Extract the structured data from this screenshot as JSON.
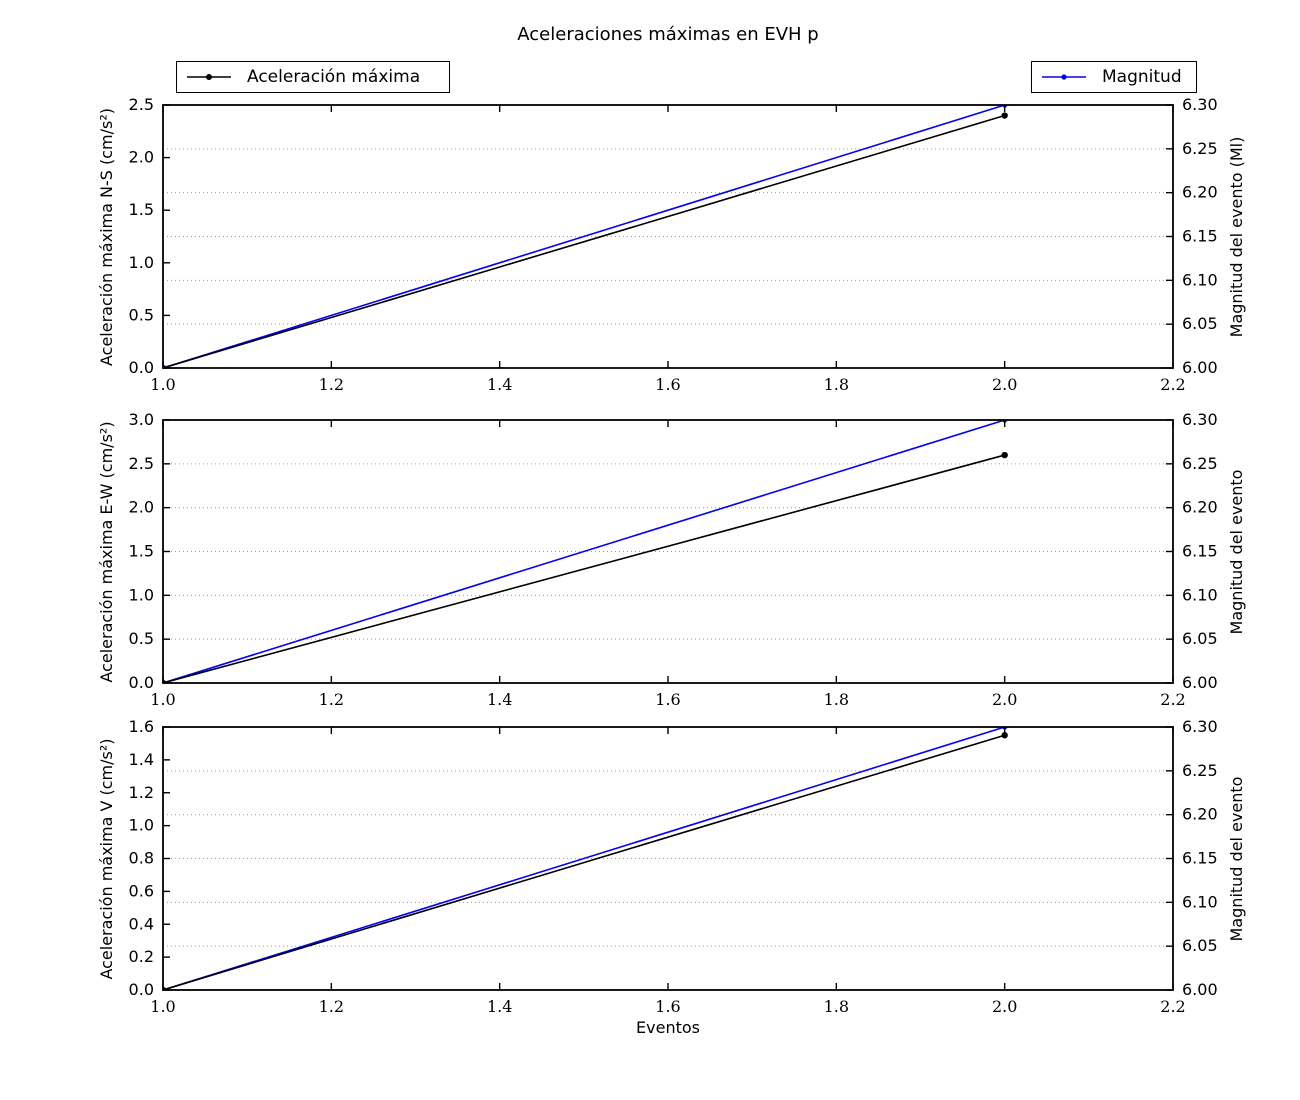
{
  "title": "Aceleraciones máximas en EVH p",
  "xlabel": "Eventos",
  "legends": {
    "accel": {
      "label": "Aceleración máxima",
      "color": "#000000"
    },
    "magnitud": {
      "label": "Magnitud",
      "color": "#0000ff"
    }
  },
  "colors": {
    "acceleration_line": "#000000",
    "magnitude_line": "#0000ff",
    "grid_line": "#9a9a9a",
    "spine": "#000000",
    "background": "#ffffff"
  },
  "chart_data": [
    {
      "type": "line",
      "x": [
        1.0,
        2.0
      ],
      "xlim": [
        1.0,
        2.2
      ],
      "xtick_values": [
        1.0,
        1.2,
        1.4,
        1.6,
        1.8,
        2.0,
        2.2
      ],
      "xtick_labels": [
        "1.0",
        "1.2",
        "1.4",
        "1.6",
        "1.8",
        "2.0",
        "2.2"
      ],
      "grid": {
        "on": true,
        "style": "dotted",
        "follows": "right-axis-ticks"
      },
      "left": {
        "label": "Aceleración máxima N-S (cm/s²)",
        "series_name": "Aceleración máxima",
        "ylim": [
          0.0,
          2.5
        ],
        "tick_values": [
          0.0,
          0.5,
          1.0,
          1.5,
          2.0,
          2.5
        ],
        "tick_labels": [
          "0.0",
          "0.5",
          "1.0",
          "1.5",
          "2.0",
          "2.5"
        ],
        "values": [
          0.0,
          2.4
        ]
      },
      "right": {
        "label": "Magnitud del evento (Ml)",
        "series_name": "Magnitud",
        "ylim": [
          6.0,
          6.3
        ],
        "tick_values": [
          6.0,
          6.05,
          6.1,
          6.15,
          6.2,
          6.25,
          6.3
        ],
        "tick_labels": [
          "6.00",
          "6.05",
          "6.10",
          "6.15",
          "6.20",
          "6.25",
          "6.30"
        ],
        "values": [
          6.0,
          6.3
        ]
      }
    },
    {
      "type": "line",
      "x": [
        1.0,
        2.0
      ],
      "xlim": [
        1.0,
        2.2
      ],
      "xtick_values": [
        1.0,
        1.2,
        1.4,
        1.6,
        1.8,
        2.0,
        2.2
      ],
      "xtick_labels": [
        "1.0",
        "1.2",
        "1.4",
        "1.6",
        "1.8",
        "2.0",
        "2.2"
      ],
      "grid": {
        "on": true,
        "style": "dotted",
        "follows": "right-axis-ticks"
      },
      "left": {
        "label": "Aceleración máxima E-W (cm/s²)",
        "series_name": "Aceleración máxima",
        "ylim": [
          0.0,
          3.0
        ],
        "tick_values": [
          0.0,
          0.5,
          1.0,
          1.5,
          2.0,
          2.5,
          3.0
        ],
        "tick_labels": [
          "0.0",
          "0.5",
          "1.0",
          "1.5",
          "2.0",
          "2.5",
          "3.0"
        ],
        "values": [
          0.0,
          2.6
        ]
      },
      "right": {
        "label": "Magnitud del evento",
        "series_name": "Magnitud",
        "ylim": [
          6.0,
          6.3
        ],
        "tick_values": [
          6.0,
          6.05,
          6.1,
          6.15,
          6.2,
          6.25,
          6.3
        ],
        "tick_labels": [
          "6.00",
          "6.05",
          "6.10",
          "6.15",
          "6.20",
          "6.25",
          "6.30"
        ],
        "values": [
          6.0,
          6.3
        ]
      }
    },
    {
      "type": "line",
      "x": [
        1.0,
        2.0
      ],
      "xlim": [
        1.0,
        2.2
      ],
      "xtick_values": [
        1.0,
        1.2,
        1.4,
        1.6,
        1.8,
        2.0,
        2.2
      ],
      "xtick_labels": [
        "1.0",
        "1.2",
        "1.4",
        "1.6",
        "1.8",
        "2.0",
        "2.2"
      ],
      "grid": {
        "on": true,
        "style": "dotted",
        "follows": "right-axis-ticks"
      },
      "left": {
        "label": "Aceleración máxima V (cm/s²)",
        "series_name": "Aceleración máxima",
        "ylim": [
          0.0,
          1.6
        ],
        "tick_values": [
          0.0,
          0.2,
          0.4,
          0.6,
          0.8,
          1.0,
          1.2,
          1.4,
          1.6
        ],
        "tick_labels": [
          "0.0",
          "0.2",
          "0.4",
          "0.6",
          "0.8",
          "1.0",
          "1.2",
          "1.4",
          "1.6"
        ],
        "values": [
          0.0,
          1.55
        ]
      },
      "right": {
        "label": "Magnitud del evento",
        "series_name": "Magnitud",
        "ylim": [
          6.0,
          6.3
        ],
        "tick_values": [
          6.0,
          6.05,
          6.1,
          6.15,
          6.2,
          6.25,
          6.3
        ],
        "tick_labels": [
          "6.00",
          "6.05",
          "6.10",
          "6.15",
          "6.20",
          "6.25",
          "6.30"
        ],
        "values": [
          6.0,
          6.3
        ]
      }
    }
  ]
}
